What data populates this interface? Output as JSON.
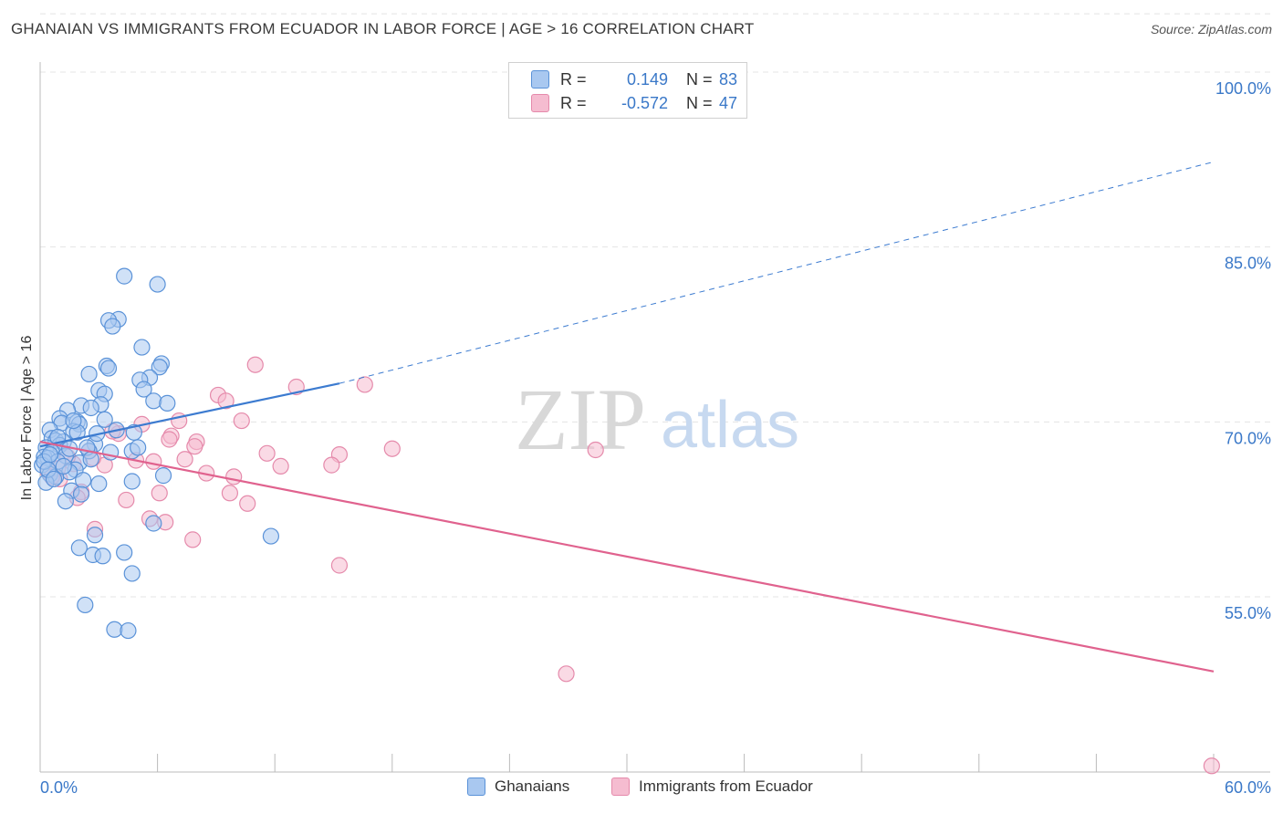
{
  "title": "GHANAIAN VS IMMIGRANTS FROM ECUADOR IN LABOR FORCE | AGE > 16 CORRELATION CHART",
  "source": "Source: ZipAtlas.com",
  "watermark": {
    "zip": "ZIP",
    "atlas": "atlas"
  },
  "colors": {
    "blue_fill": "#a9c8f0",
    "blue_stroke": "#5a92d8",
    "blue_line": "#3c7bd0",
    "pink_fill": "#f5bcd0",
    "pink_stroke": "#e58aab",
    "pink_line": "#e0628e",
    "axis_text": "#3a78c8",
    "grid": "#e4e4e4"
  },
  "legend_stats": {
    "rows": [
      {
        "series": "Ghanaians",
        "r_label": "R =",
        "r_value": "0.149",
        "n_label": "N =",
        "n_value": "83"
      },
      {
        "series": "Immigrants from Ecuador",
        "r_label": "R =",
        "r_value": "-0.572",
        "n_label": "N =",
        "n_value": "47"
      }
    ]
  },
  "legend_bottom": [
    "Ghanaians",
    "Immigrants from Ecuador"
  ],
  "chart_data": {
    "type": "scatter",
    "title": "GHANAIAN VS IMMIGRANTS FROM ECUADOR IN LABOR FORCE | AGE > 16 CORRELATION CHART",
    "xlabel": "",
    "ylabel": "In Labor Force | Age > 16",
    "xlim": [
      0,
      60
    ],
    "ylim": [
      40,
      105
    ],
    "x_tick_labels": [
      "0.0%",
      "60.0%"
    ],
    "y_ticks": [
      {
        "value": 55,
        "label": "55.0%"
      },
      {
        "value": 70,
        "label": "70.0%"
      },
      {
        "value": 85,
        "label": "85.0%"
      },
      {
        "value": 100,
        "label": "100.0%"
      }
    ],
    "series": [
      {
        "name": "Ghanaians",
        "r": 0.149,
        "n": 83,
        "trend": {
          "x0": 0,
          "y0": 67.9,
          "x1": 15.3,
          "y1": 73.3,
          "dash_x1": 60,
          "dash_y1": 92.3
        },
        "points": [
          [
            4.3,
            82.5
          ],
          [
            6.0,
            81.8
          ],
          [
            4.0,
            78.8
          ],
          [
            3.5,
            78.7
          ],
          [
            3.7,
            78.2
          ],
          [
            5.2,
            76.4
          ],
          [
            6.2,
            75.0
          ],
          [
            3.4,
            74.8
          ],
          [
            3.5,
            74.6
          ],
          [
            6.1,
            74.7
          ],
          [
            2.5,
            74.1
          ],
          [
            5.6,
            73.8
          ],
          [
            5.1,
            73.6
          ],
          [
            5.3,
            72.8
          ],
          [
            3.0,
            72.7
          ],
          [
            3.3,
            72.4
          ],
          [
            5.8,
            71.8
          ],
          [
            6.5,
            71.6
          ],
          [
            3.1,
            71.5
          ],
          [
            2.1,
            71.4
          ],
          [
            2.6,
            71.2
          ],
          [
            1.4,
            71.0
          ],
          [
            1.0,
            70.3
          ],
          [
            3.3,
            70.2
          ],
          [
            1.9,
            70.0
          ],
          [
            1.1,
            69.9
          ],
          [
            2.0,
            69.8
          ],
          [
            0.5,
            69.3
          ],
          [
            1.7,
            69.2
          ],
          [
            4.8,
            69.1
          ],
          [
            3.9,
            69.3
          ],
          [
            1.9,
            69.1
          ],
          [
            0.6,
            68.6
          ],
          [
            0.8,
            68.4
          ],
          [
            1.2,
            68.3
          ],
          [
            2.8,
            68.1
          ],
          [
            1.0,
            68.0
          ],
          [
            0.3,
            67.8
          ],
          [
            0.6,
            67.4
          ],
          [
            4.7,
            67.5
          ],
          [
            1.3,
            67.1
          ],
          [
            0.2,
            67.0
          ],
          [
            2.5,
            67.5
          ],
          [
            0.4,
            66.9
          ],
          [
            0.9,
            66.6
          ],
          [
            2.0,
            66.5
          ],
          [
            0.1,
            66.3
          ],
          [
            1.8,
            65.9
          ],
          [
            1.5,
            65.7
          ],
          [
            0.5,
            65.5
          ],
          [
            0.8,
            65.3
          ],
          [
            6.3,
            65.4
          ],
          [
            2.2,
            65.0
          ],
          [
            4.7,
            64.9
          ],
          [
            3.0,
            64.7
          ],
          [
            0.3,
            64.8
          ],
          [
            1.6,
            64.1
          ],
          [
            2.1,
            63.8
          ],
          [
            1.3,
            63.2
          ],
          [
            5.8,
            61.3
          ],
          [
            11.8,
            60.2
          ],
          [
            2.8,
            60.3
          ],
          [
            2.0,
            59.2
          ],
          [
            2.7,
            58.6
          ],
          [
            3.2,
            58.5
          ],
          [
            4.3,
            58.8
          ],
          [
            4.7,
            57.0
          ],
          [
            2.3,
            54.3
          ],
          [
            3.8,
            52.2
          ],
          [
            4.5,
            52.1
          ],
          [
            0.2,
            66.6
          ],
          [
            0.5,
            67.2
          ],
          [
            1.5,
            67.7
          ],
          [
            2.4,
            67.8
          ],
          [
            0.9,
            68.7
          ],
          [
            1.7,
            70.1
          ],
          [
            2.9,
            69.0
          ],
          [
            0.4,
            65.9
          ],
          [
            3.6,
            67.4
          ],
          [
            5.0,
            67.8
          ],
          [
            1.2,
            66.2
          ],
          [
            0.7,
            65.1
          ],
          [
            2.6,
            66.8
          ]
        ]
      },
      {
        "name": "Immigrants from Ecuador",
        "r": -0.572,
        "n": 47,
        "trend": {
          "x0": 0,
          "y0": 68.3,
          "x1": 60,
          "y1": 48.6
        },
        "points": [
          [
            11.0,
            74.9
          ],
          [
            13.1,
            73.0
          ],
          [
            16.6,
            73.2
          ],
          [
            9.1,
            72.3
          ],
          [
            9.5,
            71.8
          ],
          [
            10.3,
            70.1
          ],
          [
            7.1,
            70.1
          ],
          [
            5.2,
            69.8
          ],
          [
            6.7,
            68.8
          ],
          [
            4.0,
            69.0
          ],
          [
            8.0,
            68.3
          ],
          [
            7.9,
            67.9
          ],
          [
            2.5,
            67.5
          ],
          [
            11.6,
            67.3
          ],
          [
            15.3,
            67.2
          ],
          [
            18.0,
            67.7
          ],
          [
            28.4,
            67.6
          ],
          [
            7.4,
            66.8
          ],
          [
            4.9,
            66.7
          ],
          [
            5.8,
            66.6
          ],
          [
            3.3,
            66.3
          ],
          [
            12.3,
            66.2
          ],
          [
            14.9,
            66.3
          ],
          [
            1.7,
            66.4
          ],
          [
            8.5,
            65.6
          ],
          [
            9.9,
            65.3
          ],
          [
            1.0,
            65.1
          ],
          [
            6.1,
            63.9
          ],
          [
            9.7,
            63.9
          ],
          [
            10.6,
            63.0
          ],
          [
            4.4,
            63.3
          ],
          [
            2.1,
            64.0
          ],
          [
            5.6,
            61.7
          ],
          [
            6.4,
            61.4
          ],
          [
            2.8,
            60.8
          ],
          [
            7.8,
            59.9
          ],
          [
            15.3,
            57.7
          ],
          [
            26.9,
            48.4
          ],
          [
            59.9,
            40.5
          ],
          [
            0.4,
            65.8
          ],
          [
            0.9,
            66.0
          ],
          [
            3.7,
            69.2
          ],
          [
            2.7,
            66.9
          ],
          [
            1.4,
            67.0
          ],
          [
            0.6,
            65.3
          ],
          [
            6.6,
            68.5
          ],
          [
            1.9,
            63.5
          ]
        ]
      }
    ]
  }
}
